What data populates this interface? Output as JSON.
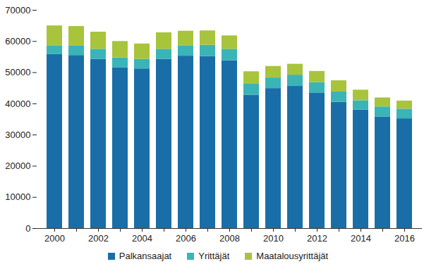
{
  "chart_data": {
    "type": "bar",
    "stacked": true,
    "legend": "bottom",
    "grid": false,
    "categories": [
      "2000",
      null,
      "2002",
      null,
      "2004",
      null,
      "2006",
      null,
      "2008",
      null,
      "2010",
      null,
      "2012",
      null,
      "2014",
      null,
      "2016"
    ],
    "ylim": [
      0,
      70000
    ],
    "yticks": [
      0,
      10000,
      20000,
      30000,
      40000,
      50000,
      60000,
      70000
    ],
    "series": [
      {
        "name": "Palkansaajat",
        "color": "#1a6ea8",
        "values": [
          55800,
          55500,
          54300,
          51600,
          51200,
          54300,
          55300,
          55200,
          53800,
          42800,
          44900,
          45600,
          43500,
          40500,
          38000,
          35800,
          35200
        ]
      },
      {
        "name": "Yrittäjät",
        "color": "#3ab4b7",
        "values": [
          2700,
          3000,
          3200,
          3100,
          3100,
          3200,
          3200,
          3600,
          3700,
          3500,
          3400,
          3600,
          3300,
          3300,
          3000,
          3200,
          3100
        ]
      },
      {
        "name": "Maatalousyrittäjät",
        "color": "#a8c43c",
        "values": [
          6500,
          6300,
          5500,
          5300,
          4900,
          5300,
          4800,
          4600,
          4300,
          4000,
          3700,
          3500,
          3600,
          3600,
          3400,
          2900,
          2600
        ]
      }
    ]
  }
}
